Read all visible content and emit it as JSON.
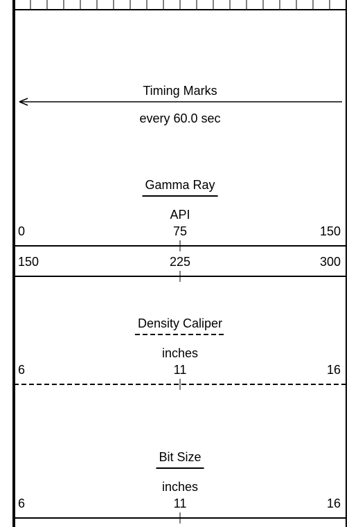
{
  "timing": {
    "title": "Timing Marks",
    "subtitle": "every 60.0 sec"
  },
  "tracks": [
    {
      "name": "Gamma Ray",
      "unit": "API",
      "line": "solid",
      "scales": [
        {
          "left": 0,
          "mid": 75,
          "right": 150
        },
        {
          "left": 150,
          "mid": 225,
          "right": 300
        }
      ]
    },
    {
      "name": "Density Caliper",
      "unit": "inches",
      "line": "dashed",
      "scales": [
        {
          "left": 6,
          "mid": 11,
          "right": 16
        }
      ]
    },
    {
      "name": "Bit Size",
      "unit": "inches",
      "line": "solid",
      "scales": [
        {
          "left": 6,
          "mid": 11,
          "right": 16
        }
      ]
    }
  ]
}
